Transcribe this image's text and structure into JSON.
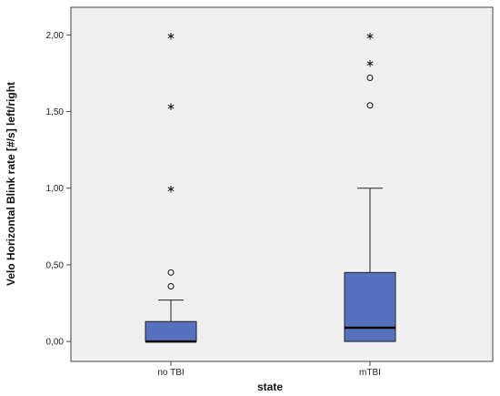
{
  "chart_data": {
    "type": "box",
    "title": "",
    "xlabel": "state",
    "ylabel": "Velo Horizontal Blink rate [#/s] left/right",
    "categories": [
      "no TBI",
      "mTBI"
    ],
    "ylim": [
      -0.13,
      2.18
    ],
    "yticks": [
      0.0,
      0.5,
      1.0,
      1.5,
      2.0
    ],
    "ytick_labels": [
      "0,00",
      "0,50",
      "1,00",
      "1,50",
      "2,00"
    ],
    "grid": false,
    "box_color": "#5672bf",
    "plot_background": "#f0f0f0",
    "boxes": [
      {
        "category": "no TBI",
        "whisker_low": 0.0,
        "q1": 0.0,
        "median": 0.0,
        "q3": 0.13,
        "whisker_high": 0.27,
        "outliers_circle": [
          0.36,
          0.45
        ],
        "outliers_star": [
          1.0,
          1.54,
          2.0
        ]
      },
      {
        "category": "mTBI",
        "whisker_low": 0.0,
        "q1": 0.0,
        "median": 0.09,
        "q3": 0.45,
        "whisker_high": 1.0,
        "outliers_circle": [
          1.54,
          1.72
        ],
        "outliers_star": [
          1.82,
          2.0
        ]
      }
    ]
  }
}
